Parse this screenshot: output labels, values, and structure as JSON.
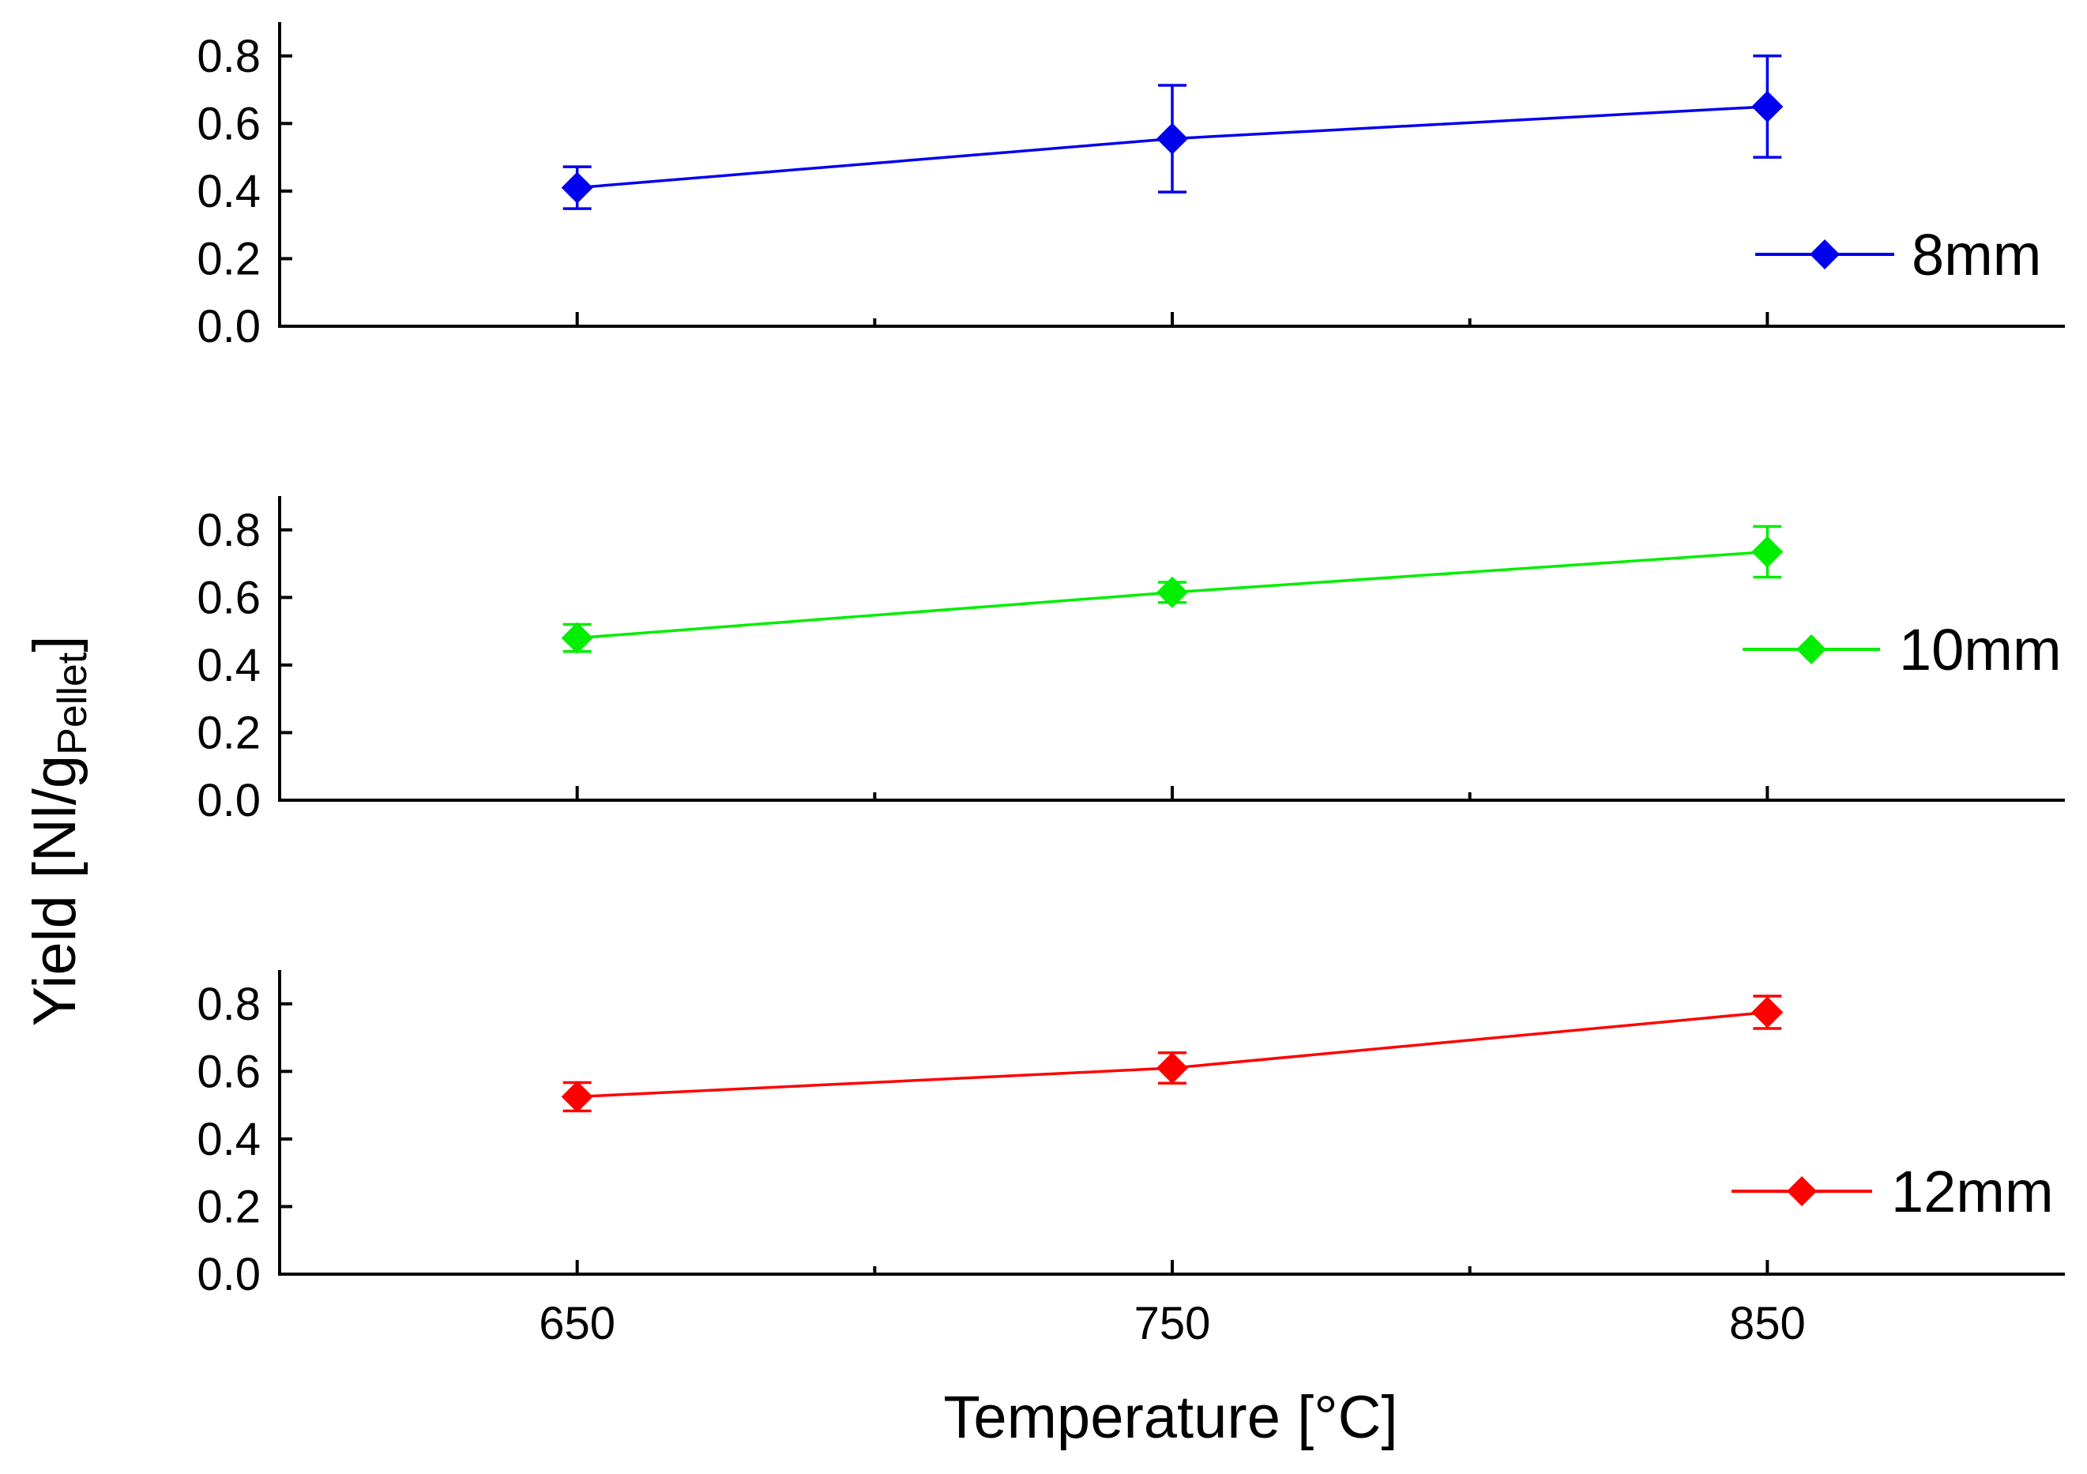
{
  "chart_data": {
    "type": "line",
    "ylabel": {
      "main": "Yield [Nl/g",
      "sub": "Pellet",
      "close": "]"
    },
    "xlabel": "Temperature [°C]",
    "x_ticks": [
      650,
      750,
      850
    ],
    "xlim": [
      600,
      900
    ],
    "ylim": [
      0,
      0.9
    ],
    "y_ticks": [
      "0.0",
      "0.2",
      "0.4",
      "0.6",
      "0.8"
    ],
    "panels": [
      {
        "name": "8mm",
        "legend": "8mm",
        "color": "#0000ee",
        "x": [
          650,
          750,
          850
        ],
        "values": [
          0.41,
          0.555,
          0.65
        ],
        "errors": [
          0.062,
          0.158,
          0.15
        ]
      },
      {
        "name": "10mm",
        "legend": "10mm",
        "color": "#00ee00",
        "x": [
          650,
          750,
          850
        ],
        "values": [
          0.48,
          0.615,
          0.735
        ],
        "errors": [
          0.04,
          0.03,
          0.075
        ]
      },
      {
        "name": "12mm",
        "legend": "12mm",
        "color": "#ff0000",
        "x": [
          650,
          750,
          850
        ],
        "values": [
          0.525,
          0.61,
          0.775
        ],
        "errors": [
          0.042,
          0.045,
          0.048
        ]
      }
    ]
  }
}
